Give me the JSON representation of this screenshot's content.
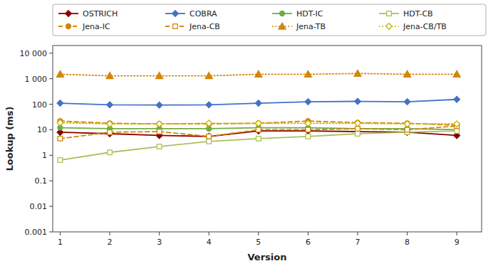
{
  "chart_data": {
    "type": "line",
    "x": [
      1,
      2,
      3,
      4,
      5,
      6,
      7,
      8,
      9
    ],
    "xlim": [
      0.85,
      9.5
    ],
    "xticks": [
      1,
      2,
      3,
      4,
      5,
      6,
      7,
      8,
      9
    ],
    "ylim": [
      0.001,
      20000
    ],
    "yticks": [
      0.001,
      0.01,
      0.1,
      1,
      10,
      100,
      {
        "value": 1000,
        "label": "1 000"
      },
      {
        "value": 10000,
        "label": "10 000"
      }
    ],
    "log": "y",
    "grid": false,
    "legend": "top",
    "x_label": "Version",
    "y_label": "Lookup (ms)",
    "series": [
      {
        "name": "OSTRICH",
        "color": "#8B0000",
        "marker": "diamond",
        "line_style": "solid",
        "values": [
          8.0,
          7.0,
          6.0,
          5.5,
          9.0,
          9.0,
          8.5,
          8.0,
          6.0
        ]
      },
      {
        "name": "COBRA",
        "color": "#4472C4",
        "marker": "diamond",
        "line_style": "solid",
        "values": [
          110.0,
          95.0,
          93.0,
          95.0,
          110.0,
          125.0,
          130.0,
          125.0,
          155.0
        ]
      },
      {
        "name": "HDT-IC",
        "color": "#70AD47",
        "marker": "circle",
        "line_style": "solid",
        "values": [
          12.0,
          11.0,
          11.0,
          11.0,
          12.0,
          12.0,
          11.0,
          11.0,
          10.0
        ]
      },
      {
        "name": "HDT-CB",
        "color": "#A9C15A",
        "marker": "open-square",
        "line_style": "solid",
        "values": [
          0.65,
          1.3,
          2.2,
          3.5,
          4.5,
          5.5,
          7.0,
          8.0,
          9.0
        ]
      },
      {
        "name": "Jena-IC",
        "color": "#D4860A",
        "marker": "circle",
        "line_style": "dashed",
        "values": [
          22.0,
          18.0,
          17.0,
          17.0,
          18.0,
          22.0,
          19.0,
          18.0,
          15.0
        ]
      },
      {
        "name": "Jena-CB",
        "color": "#D4860A",
        "marker": "open-square",
        "line_style": "dashed",
        "values": [
          4.5,
          8.0,
          8.5,
          5.5,
          10.0,
          10.0,
          11.0,
          10.0,
          14.0
        ]
      },
      {
        "name": "Jena-TB",
        "color": "#D4860A",
        "marker": "triangle",
        "line_style": "dotted",
        "values": [
          1500.0,
          1300.0,
          1300.0,
          1300.0,
          1500.0,
          1500.0,
          1600.0,
          1500.0,
          1500.0
        ]
      },
      {
        "name": "Jena-CB/TB",
        "color": "#C8B400",
        "marker": "open-diamond",
        "line_style": "dotted",
        "values": [
          19.0,
          17.0,
          17.0,
          18.0,
          18.0,
          18.0,
          18.0,
          17.0,
          17.0
        ]
      }
    ]
  }
}
